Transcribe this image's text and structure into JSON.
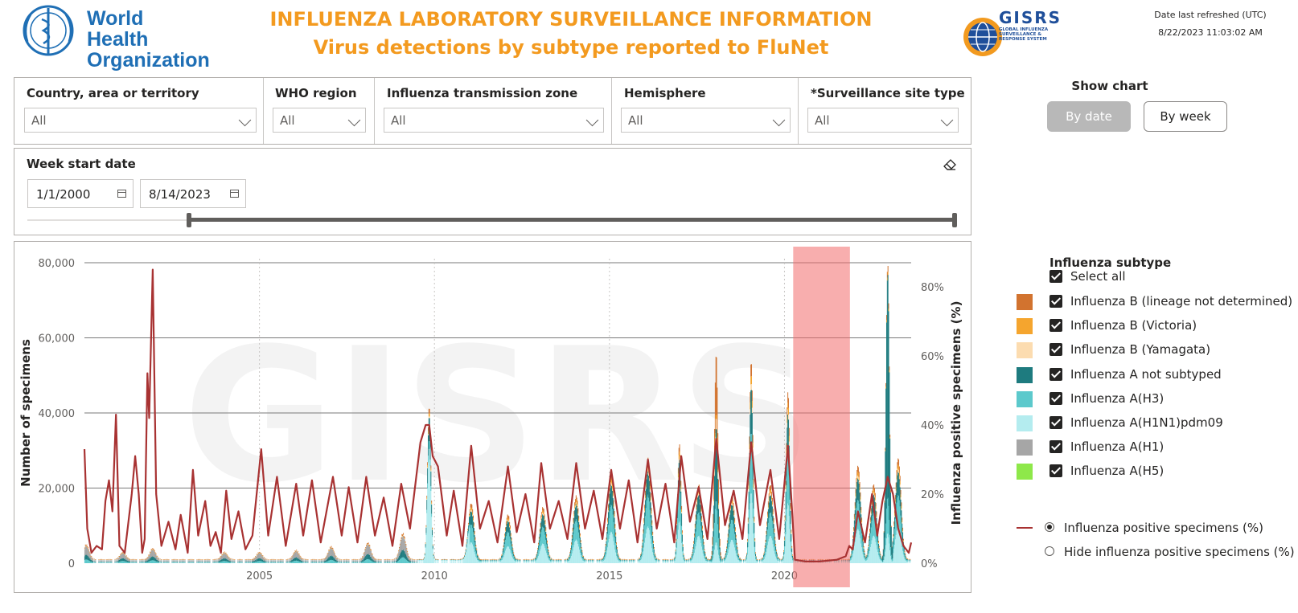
{
  "header": {
    "who_logo_text": "World Health Organization",
    "title_line1": "INFLUENZA LABORATORY SURVEILLANCE INFORMATION",
    "title_line2": "Virus detections by subtype reported to FluNet",
    "gisrs_logo_text": "GISRS",
    "gisrs_logo_subtitle": "GLOBAL INFLUENZA SURVEILLANCE & RESPONSE SYSTEM",
    "refresh_label": "Date last refreshed (UTC)",
    "refresh_value": "8/22/2023 11:03:02 AM"
  },
  "filters": [
    {
      "label": "Country, area or territory",
      "value": "All"
    },
    {
      "label": "WHO region",
      "value": "All"
    },
    {
      "label": "Influenza transmission zone",
      "value": "All"
    },
    {
      "label": "Hemisphere",
      "value": "All"
    },
    {
      "label": "*Surveillance site type",
      "value": "All"
    }
  ],
  "date_filter": {
    "label": "Week start date",
    "start": "1/1/2000",
    "end": "8/14/2023",
    "eraser_icon": "eraser-icon",
    "slider_range": [
      0,
      1
    ]
  },
  "show_chart": {
    "label": "Show chart",
    "options": [
      "By date",
      "By week"
    ],
    "selected": "By date"
  },
  "legend": {
    "title": "Influenza subtype",
    "select_all": "Select all",
    "items": [
      {
        "label": "Influenza B (lineage not determined)",
        "color": "#d2732f",
        "checked": true
      },
      {
        "label": "Influenza B (Victoria)",
        "color": "#f5a52e",
        "checked": true
      },
      {
        "label": "Influenza B (Yamagata)",
        "color": "#fcdcb0",
        "checked": true
      },
      {
        "label": "Influenza A not subtyped",
        "color": "#1e7b7f",
        "checked": true
      },
      {
        "label": "Influenza A(H3)",
        "color": "#5cc9cc",
        "checked": true
      },
      {
        "label": "Influenza A(H1N1)pdm09",
        "color": "#b4ecef",
        "checked": true
      },
      {
        "label": "Influenza A(H1)",
        "color": "#a6a6a6",
        "checked": true
      },
      {
        "label": "Influenza A(H5)",
        "color": "#8ee84a",
        "checked": true
      }
    ],
    "line_options": [
      {
        "label": "Influenza positive specimens (%)",
        "selected": true,
        "color": "#a83232"
      },
      {
        "label": "Hide influenza positive specimens (%)",
        "selected": false
      }
    ]
  },
  "chart_data": {
    "type": "bar",
    "watermark": "GISRS",
    "ylabel": "Number of specimens",
    "ylabel_right": "Influenza positive specimens (%)",
    "xlabel": "",
    "ylim": [
      0,
      80000
    ],
    "ylim_right": [
      0,
      87
    ],
    "yticks": [
      "0",
      "20,000",
      "40,000",
      "60,000",
      "80,000"
    ],
    "yticks_right": [
      "0%",
      "20%",
      "40%",
      "60%",
      "80%"
    ],
    "xticks": [
      "2005",
      "2010",
      "2015",
      "2020"
    ],
    "x_range": [
      2000.0,
      2023.62
    ],
    "highlight_band": [
      2020.25,
      2021.87
    ],
    "bar_peaks": [
      {
        "x": 2000.05,
        "y": 4000
      },
      {
        "x": 2001.1,
        "y": 2000
      },
      {
        "x": 2001.95,
        "y": 3000
      },
      {
        "x": 2004.0,
        "y": 2000
      },
      {
        "x": 2005.0,
        "y": 2000
      },
      {
        "x": 2006.05,
        "y": 2500
      },
      {
        "x": 2007.05,
        "y": 3500
      },
      {
        "x": 2008.1,
        "y": 4500
      },
      {
        "x": 2009.1,
        "y": 7000
      },
      {
        "x": 2009.85,
        "y": 41000
      },
      {
        "x": 2011.05,
        "y": 15000
      },
      {
        "x": 2012.1,
        "y": 12000
      },
      {
        "x": 2013.1,
        "y": 14000
      },
      {
        "x": 2014.05,
        "y": 17000
      },
      {
        "x": 2015.05,
        "y": 23000
      },
      {
        "x": 2016.1,
        "y": 27000
      },
      {
        "x": 2017.0,
        "y": 31000
      },
      {
        "x": 2017.55,
        "y": 20000
      },
      {
        "x": 2018.05,
        "y": 55000
      },
      {
        "x": 2018.5,
        "y": 17000
      },
      {
        "x": 2019.05,
        "y": 53000
      },
      {
        "x": 2019.6,
        "y": 20000
      },
      {
        "x": 2020.1,
        "y": 45000
      },
      {
        "x": 2022.1,
        "y": 25000
      },
      {
        "x": 2022.55,
        "y": 20000
      },
      {
        "x": 2022.95,
        "y": 79000
      },
      {
        "x": 2023.25,
        "y": 27000
      }
    ],
    "series": [
      {
        "name": "Influenza positive specimens (%)",
        "color": "#a83232",
        "points": [
          [
            2000.0,
            33
          ],
          [
            2000.08,
            10
          ],
          [
            2000.2,
            3
          ],
          [
            2000.35,
            5
          ],
          [
            2000.5,
            4
          ],
          [
            2000.6,
            18
          ],
          [
            2000.7,
            24
          ],
          [
            2000.8,
            15
          ],
          [
            2000.9,
            43
          ],
          [
            2001.0,
            5
          ],
          [
            2001.15,
            3
          ],
          [
            2001.35,
            20
          ],
          [
            2001.45,
            31
          ],
          [
            2001.55,
            20
          ],
          [
            2001.65,
            3
          ],
          [
            2001.72,
            7
          ],
          [
            2001.8,
            55
          ],
          [
            2001.85,
            42
          ],
          [
            2001.95,
            85
          ],
          [
            2002.05,
            20
          ],
          [
            2002.2,
            5
          ],
          [
            2002.4,
            12
          ],
          [
            2002.6,
            4
          ],
          [
            2002.75,
            14
          ],
          [
            2002.95,
            3
          ],
          [
            2003.1,
            27
          ],
          [
            2003.25,
            8
          ],
          [
            2003.45,
            18
          ],
          [
            2003.6,
            5
          ],
          [
            2003.75,
            9
          ],
          [
            2003.9,
            3
          ],
          [
            2004.05,
            21
          ],
          [
            2004.2,
            7
          ],
          [
            2004.4,
            15
          ],
          [
            2004.6,
            4
          ],
          [
            2004.8,
            8
          ],
          [
            2005.05,
            33
          ],
          [
            2005.25,
            8
          ],
          [
            2005.5,
            25
          ],
          [
            2005.75,
            5
          ],
          [
            2006.05,
            23
          ],
          [
            2006.25,
            8
          ],
          [
            2006.5,
            24
          ],
          [
            2006.75,
            6
          ],
          [
            2007.1,
            25
          ],
          [
            2007.35,
            8
          ],
          [
            2007.55,
            22
          ],
          [
            2007.8,
            6
          ],
          [
            2008.05,
            25
          ],
          [
            2008.3,
            8
          ],
          [
            2008.55,
            19
          ],
          [
            2008.8,
            5
          ],
          [
            2009.05,
            23
          ],
          [
            2009.3,
            10
          ],
          [
            2009.6,
            35
          ],
          [
            2009.75,
            40
          ],
          [
            2009.85,
            40
          ],
          [
            2009.95,
            31
          ],
          [
            2010.1,
            28
          ],
          [
            2010.35,
            8
          ],
          [
            2010.55,
            21
          ],
          [
            2010.8,
            5
          ],
          [
            2011.05,
            34
          ],
          [
            2011.3,
            10
          ],
          [
            2011.55,
            18
          ],
          [
            2011.8,
            6
          ],
          [
            2012.1,
            28
          ],
          [
            2012.35,
            9
          ],
          [
            2012.6,
            20
          ],
          [
            2012.85,
            6
          ],
          [
            2013.05,
            29
          ],
          [
            2013.3,
            10
          ],
          [
            2013.55,
            18
          ],
          [
            2013.8,
            7
          ],
          [
            2014.05,
            29
          ],
          [
            2014.3,
            10
          ],
          [
            2014.55,
            21
          ],
          [
            2014.8,
            7
          ],
          [
            2015.05,
            27
          ],
          [
            2015.3,
            10
          ],
          [
            2015.55,
            24
          ],
          [
            2015.8,
            6
          ],
          [
            2016.1,
            30
          ],
          [
            2016.35,
            10
          ],
          [
            2016.6,
            23
          ],
          [
            2016.85,
            6
          ],
          [
            2017.05,
            31
          ],
          [
            2017.3,
            12
          ],
          [
            2017.55,
            22
          ],
          [
            2017.8,
            7
          ],
          [
            2018.05,
            36
          ],
          [
            2018.3,
            11
          ],
          [
            2018.55,
            21
          ],
          [
            2018.8,
            7
          ],
          [
            2019.05,
            35
          ],
          [
            2019.3,
            11
          ],
          [
            2019.6,
            27
          ],
          [
            2019.85,
            7
          ],
          [
            2020.1,
            34
          ],
          [
            2020.2,
            18
          ],
          [
            2020.3,
            1
          ],
          [
            2020.6,
            0.5
          ],
          [
            2021.0,
            0.5
          ],
          [
            2021.5,
            1
          ],
          [
            2021.75,
            2
          ],
          [
            2021.85,
            5
          ],
          [
            2021.95,
            4
          ],
          [
            2022.1,
            15
          ],
          [
            2022.3,
            6
          ],
          [
            2022.5,
            20
          ],
          [
            2022.65,
            8
          ],
          [
            2022.8,
            18
          ],
          [
            2022.95,
            25
          ],
          [
            2023.1,
            20
          ],
          [
            2023.25,
            10
          ],
          [
            2023.4,
            5
          ],
          [
            2023.55,
            3
          ],
          [
            2023.62,
            6
          ]
        ]
      }
    ]
  }
}
